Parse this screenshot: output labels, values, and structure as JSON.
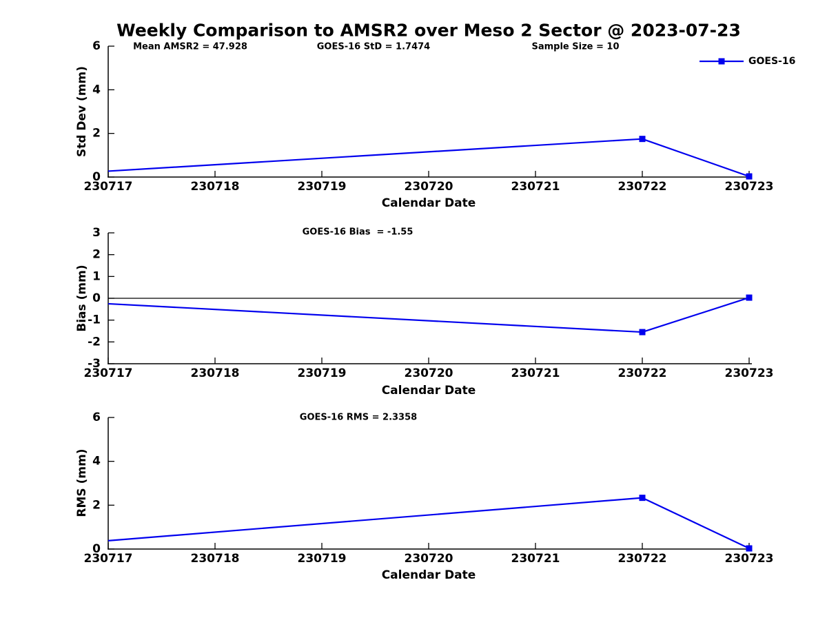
{
  "title": "Weekly Comparison to AMSR2 over Meso 2 Sector @ 2023-07-23",
  "legend": {
    "label": "GOES-16"
  },
  "colors": {
    "line": "#0000EE",
    "axis": "#000000",
    "text": "#000000",
    "background": "#FFFFFF"
  },
  "chart_data": [
    {
      "type": "line",
      "ylabel": "Std Dev (mm)",
      "xlabel": "Calendar Date",
      "ylim": [
        0,
        6
      ],
      "yticks": [
        0,
        2,
        4,
        6
      ],
      "x_ticks": [
        "230717",
        "230718",
        "230719",
        "230720",
        "230721",
        "230722",
        "230723"
      ],
      "annotations": [
        "Mean AMSR2 = 47.928",
        "GOES-16 StD = 1.7474",
        "Sample Size = 10"
      ],
      "zero_line": false,
      "series": [
        {
          "name": "GOES-16",
          "x": [
            "230717",
            "230722",
            "230723"
          ],
          "y": [
            0.27,
            1.7474,
            0.03
          ],
          "markers_at": [
            "230722",
            "230723"
          ]
        }
      ]
    },
    {
      "type": "line",
      "ylabel": "Bias (mm)",
      "xlabel": "Calendar Date",
      "ylim": [
        -3,
        3
      ],
      "yticks": [
        3,
        2,
        1,
        0,
        -1,
        -2,
        -3
      ],
      "x_ticks": [
        "230717",
        "230718",
        "230719",
        "230720",
        "230721",
        "230722",
        "230723"
      ],
      "annotations": [
        "GOES-16 Bias  = -1.55"
      ],
      "zero_line": true,
      "series": [
        {
          "name": "GOES-16",
          "x": [
            "230717",
            "230722",
            "230723"
          ],
          "y": [
            -0.25,
            -1.55,
            0.03
          ],
          "markers_at": [
            "230722",
            "230723"
          ]
        }
      ]
    },
    {
      "type": "line",
      "ylabel": "RMS (mm)",
      "xlabel": "Calendar Date",
      "ylim": [
        0,
        6
      ],
      "yticks": [
        0,
        2,
        4,
        6
      ],
      "x_ticks": [
        "230717",
        "230718",
        "230719",
        "230720",
        "230721",
        "230722",
        "230723"
      ],
      "annotations": [
        "GOES-16 RMS = 2.3358"
      ],
      "zero_line": false,
      "series": [
        {
          "name": "GOES-16",
          "x": [
            "230717",
            "230722",
            "230723"
          ],
          "y": [
            0.38,
            2.3358,
            0.03
          ],
          "markers_at": [
            "230722",
            "230723"
          ]
        }
      ]
    }
  ]
}
